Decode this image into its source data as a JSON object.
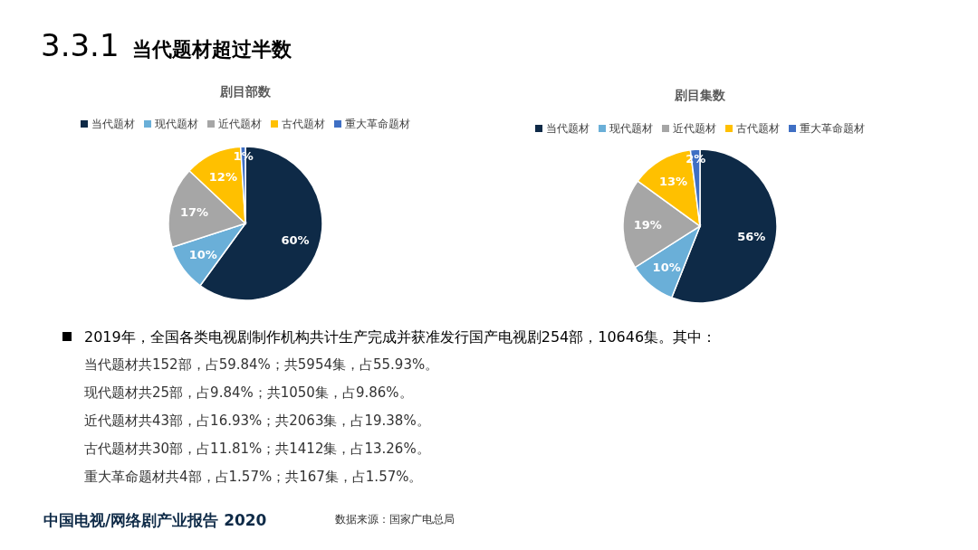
{
  "chart_data": [
    {
      "type": "pie",
      "title": "剧目部数",
      "legend": "top",
      "categories": [
        "当代题材",
        "现代题材",
        "近代题材",
        "古代题材",
        "重大革命题材"
      ],
      "values": [
        60,
        10,
        17,
        12,
        1
      ],
      "colors": [
        "#0e2a47",
        "#6aafd8",
        "#a6a6a6",
        "#ffc000",
        "#3f6fc4"
      ],
      "value_labels": [
        "60%",
        "10%",
        "17%",
        "12%",
        "1%"
      ]
    },
    {
      "type": "pie",
      "title": "剧目集数",
      "legend": "top",
      "categories": [
        "当代题材",
        "现代题材",
        "近代题材",
        "古代题材",
        "重大革命题材"
      ],
      "values": [
        56,
        10,
        19,
        13,
        2
      ],
      "colors": [
        "#0e2a47",
        "#6aafd8",
        "#a6a6a6",
        "#ffc000",
        "#3f6fc4"
      ],
      "value_labels": [
        "56%",
        "10%",
        "19%",
        "13%",
        "2%"
      ]
    },
    {
      "type": "other",
      "title": "3.3.1 当代题材超过半数",
      "annotations": [
        "2019年，全国各类电视剧制作机构共计生产完成并获准发行国产电视剧254部，10646集。其中：",
        "当代题材共152部，占59.84%；共5954集，占55.93%。",
        "现代题材共25部，占9.84%；共1050集，占9.86%。",
        "近代题材共43部，占16.93%；共2063集，占19.38%。",
        "古代题材共30部，占11.81%；共1412集，占13.26%。",
        "重大革命题材共4部，占1.57%；共167集，占1.57%。",
        "中国电视/网络剧产业报告 2020",
        "数据来源：国家广电总局"
      ]
    }
  ]
}
